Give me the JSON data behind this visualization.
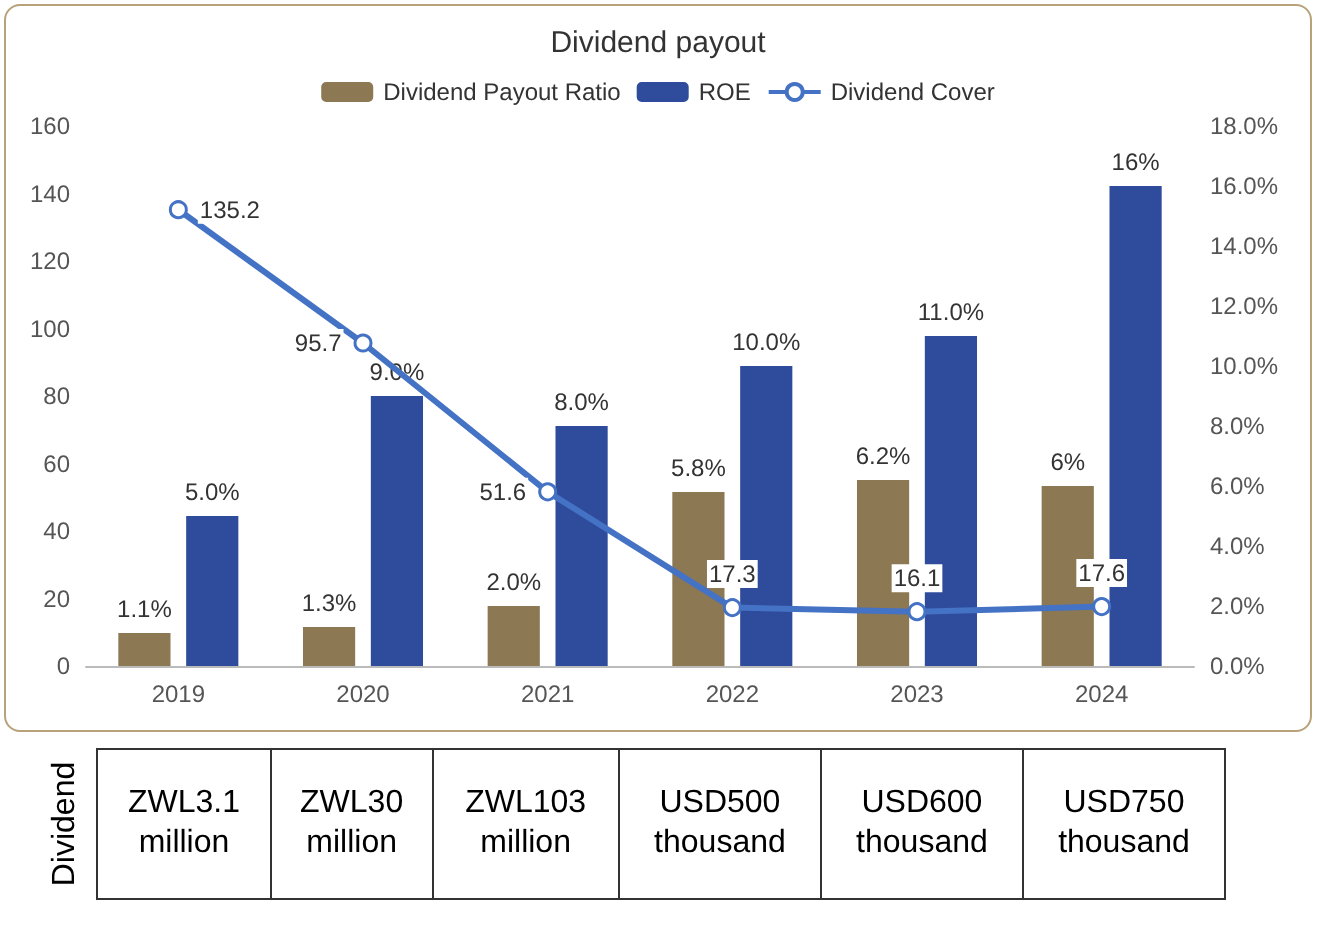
{
  "chart_data": {
    "type": "bar",
    "title": "Dividend payout",
    "categories": [
      "2019",
      "2020",
      "2021",
      "2022",
      "2023",
      "2024"
    ],
    "series": [
      {
        "name": "Dividend Payout Ratio",
        "axis": "y2",
        "color": "#8c7853",
        "values": [
          1.1,
          1.3,
          2.0,
          5.8,
          6.2,
          6
        ],
        "value_labels": [
          "1.1%",
          "1.3%",
          "2.0%",
          "5.8%",
          "6.2%",
          "6%"
        ]
      },
      {
        "name": "ROE",
        "axis": "y2",
        "color": "#2f4b9c",
        "values": [
          5.0,
          9.0,
          8.0,
          10.0,
          11.0,
          16
        ],
        "value_labels": [
          "5.0%",
          "9.0%",
          "8.0%",
          "10.0%",
          "11.0%",
          "16%"
        ]
      },
      {
        "name": "Dividend Cover",
        "type": "line",
        "color": "#4472c4",
        "marker": "circle",
        "values": [
          135.2,
          95.7,
          51.6,
          17.3,
          16.1,
          17.6
        ],
        "value_labels": [
          "135.2",
          "95.7",
          "51.6",
          "17.3",
          "16.1",
          "17.6"
        ]
      }
    ],
    "ylim": [
      0,
      160
    ],
    "yticks": [
      0,
      20,
      40,
      60,
      80,
      100,
      120,
      140,
      160
    ],
    "y2lim": [
      0,
      18
    ],
    "y2ticks": [
      {
        "value": 0,
        "label": "0.0%"
      },
      {
        "value": 2,
        "label": "2.0%"
      },
      {
        "value": 4,
        "label": "4.0%"
      },
      {
        "value": 6,
        "label": "6.0%"
      },
      {
        "value": 8,
        "label": "8.0%"
      },
      {
        "value": 10,
        "label": "10.0%"
      },
      {
        "value": 12,
        "label": "12.0%"
      },
      {
        "value": 14,
        "label": "14.0%"
      },
      {
        "value": 16,
        "label": "16.0%"
      },
      {
        "value": 18,
        "label": "18.0%"
      }
    ],
    "grid": false,
    "legend": "top",
    "annotations": [
      "Dividend",
      "ZWL3.1 million",
      "ZWL30 million",
      "ZWL103 million",
      "USD500 thousand",
      "USD600 thousand",
      "USD750 thousand"
    ]
  }
}
